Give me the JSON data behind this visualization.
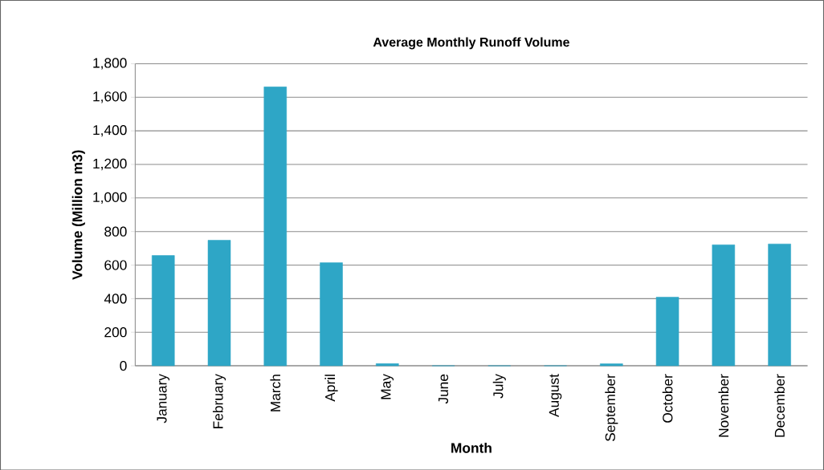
{
  "chart_data": {
    "type": "bar",
    "title": "Average Monthly Runoff Volume",
    "xlabel": "Month",
    "ylabel": "Volume (Million m3)",
    "categories": [
      "January",
      "February",
      "March",
      "April",
      "May",
      "June",
      "July",
      "August",
      "September",
      "October",
      "November",
      "December"
    ],
    "values": [
      657,
      748,
      1662,
      614,
      13,
      0,
      0,
      0,
      12,
      409,
      721,
      726
    ],
    "color": "#2ea6c6",
    "ylim": [
      0,
      1800
    ],
    "yticks": [
      {
        "value": 0,
        "label": "0"
      },
      {
        "value": 200,
        "label": "200"
      },
      {
        "value": 400,
        "label": "400"
      },
      {
        "value": 600,
        "label": "600"
      },
      {
        "value": 800,
        "label": "800"
      },
      {
        "value": 1000,
        "label": "1,000"
      },
      {
        "value": 1200,
        "label": "1,200"
      },
      {
        "value": 1400,
        "label": "1,400"
      },
      {
        "value": 1600,
        "label": "1,600"
      },
      {
        "value": 1800,
        "label": "1,800"
      }
    ],
    "grid": "y"
  }
}
